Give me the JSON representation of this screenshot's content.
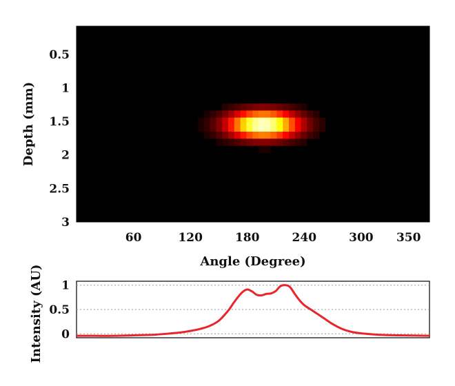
{
  "chart_data": [
    {
      "type": "heatmap",
      "title": "",
      "xlabel": "Angle (Degree)",
      "ylabel": "Depth (mm)",
      "xlim": [
        0,
        372
      ],
      "ylim": [
        0.08,
        3.0
      ],
      "y_inverted": true,
      "xticks": [
        60,
        120,
        180,
        240,
        300,
        350
      ],
      "yticks": [
        0.5,
        1,
        1.5,
        2,
        2.5,
        3
      ],
      "xtick_labels": [
        "60",
        "120",
        "180",
        "240",
        "300",
        "350"
      ],
      "ytick_labels": [
        "0.5",
        "1",
        "1.5",
        "2",
        "2.5",
        "3"
      ],
      "colormap": "hot",
      "background_color": "#000000",
      "grid": false,
      "hotspot": {
        "peak_intensity": 1.0,
        "center_angle_deg": 197,
        "angle_half_width_deg": 40,
        "center_depth_mm": 1.55,
        "depth_half_width_mm": 0.22
      }
    },
    {
      "type": "line",
      "title": "",
      "xlabel": "",
      "ylabel": "Intensity (AU)",
      "xlim": [
        0,
        372
      ],
      "ylim": [
        -0.08,
        1.08
      ],
      "yticks": [
        0,
        0.5,
        1
      ],
      "ytick_labels": [
        "0",
        "0.5",
        "1"
      ],
      "grid": true,
      "grid_style": "dotted-horizontal",
      "line_color": "#e8252a",
      "x": [
        0,
        20,
        40,
        60,
        80,
        100,
        110,
        120,
        130,
        140,
        150,
        160,
        165,
        170,
        175,
        180,
        185,
        190,
        195,
        200,
        205,
        210,
        215,
        220,
        225,
        230,
        235,
        240,
        250,
        260,
        270,
        280,
        290,
        300,
        320,
        340,
        372
      ],
      "y": [
        -0.04,
        -0.04,
        -0.04,
        -0.03,
        -0.02,
        0.01,
        0.03,
        0.06,
        0.1,
        0.16,
        0.27,
        0.48,
        0.62,
        0.75,
        0.86,
        0.91,
        0.87,
        0.8,
        0.79,
        0.82,
        0.83,
        0.88,
        0.98,
        1.0,
        0.96,
        0.82,
        0.69,
        0.59,
        0.46,
        0.33,
        0.2,
        0.1,
        0.04,
        0.01,
        -0.02,
        -0.03,
        -0.04
      ]
    }
  ]
}
